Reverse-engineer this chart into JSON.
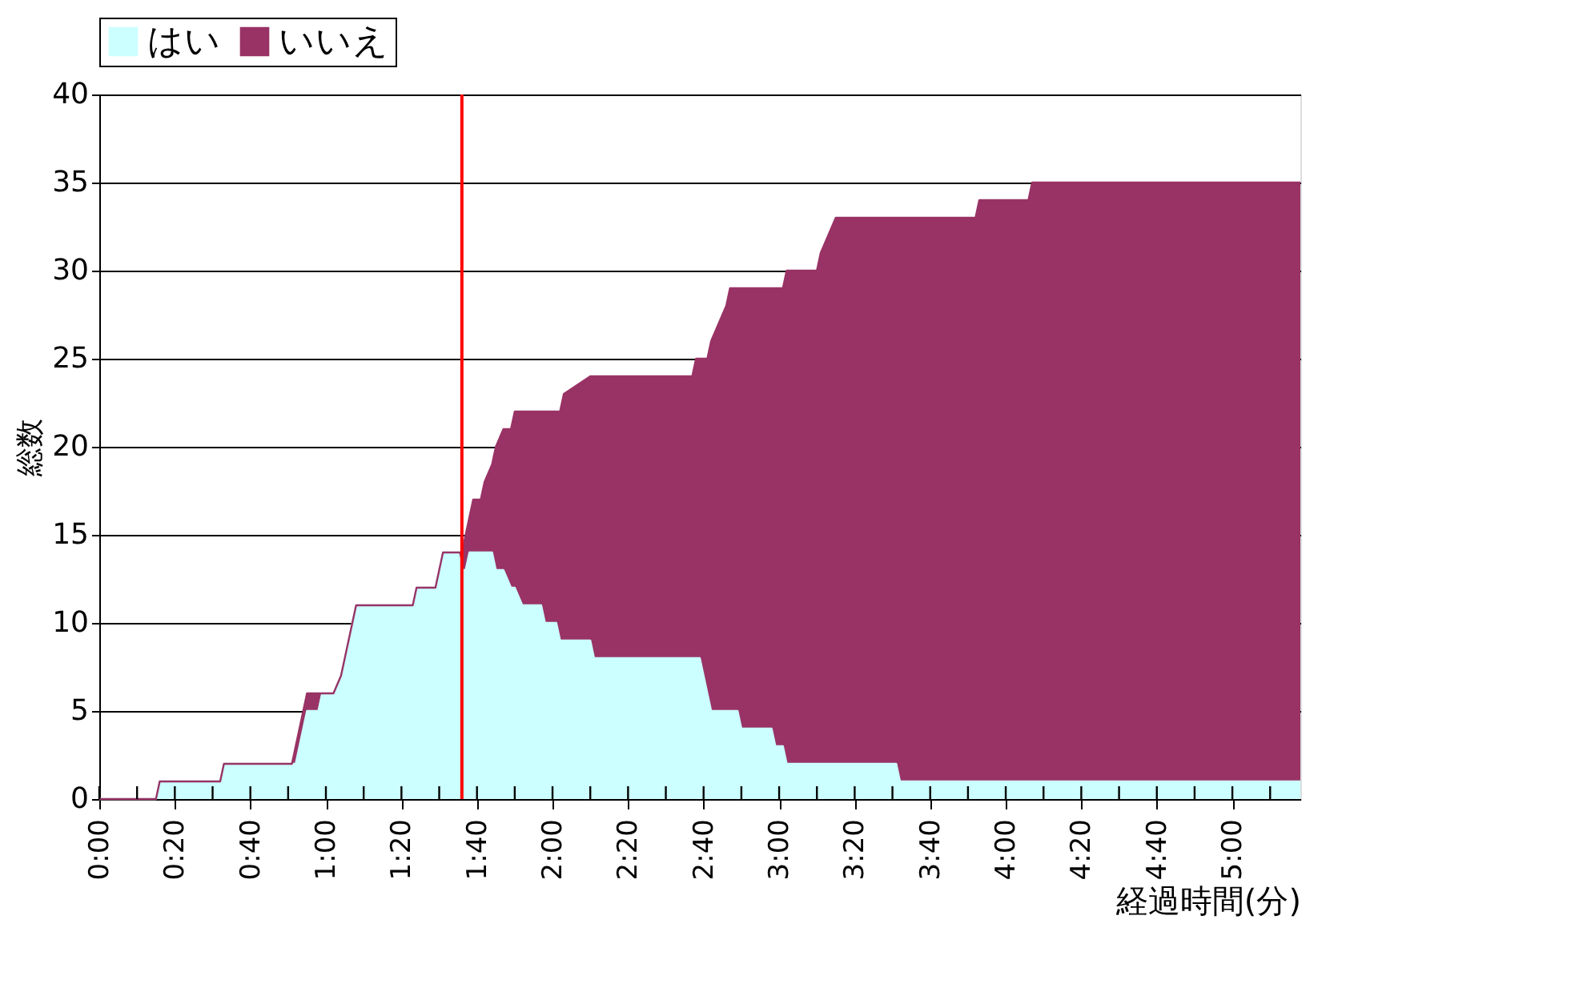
{
  "chart_data": {
    "type": "area",
    "stacked": true,
    "xlabel": "経過時間(分)",
    "ylabel": "総数",
    "x": [
      0,
      15,
      16,
      32,
      33,
      51,
      52,
      53,
      54,
      55,
      58,
      59,
      62,
      64,
      65,
      66,
      67,
      68,
      83,
      84,
      89,
      90,
      91,
      95,
      96,
      97,
      98,
      99,
      101,
      102,
      104,
      105,
      107,
      109,
      110,
      112,
      117,
      118,
      121,
      122,
      123,
      130,
      131,
      157,
      158,
      159,
      160,
      161,
      162,
      164,
      166,
      167,
      169,
      170,
      178,
      179,
      181,
      182,
      190,
      191,
      193,
      195,
      211,
      212,
      232,
      233,
      246,
      247,
      318
    ],
    "series": [
      {
        "name": "はい",
        "color": "#ccffff",
        "values": [
          0,
          0,
          1,
          1,
          2,
          2,
          2,
          3,
          4,
          5,
          5,
          6,
          6,
          7,
          8,
          9,
          10,
          11,
          11,
          12,
          12,
          13,
          14,
          14,
          13,
          13,
          14,
          14,
          14,
          14,
          14,
          13,
          13,
          12,
          12,
          11,
          11,
          10,
          10,
          9,
          9,
          9,
          8,
          8,
          8,
          8,
          7,
          6,
          5,
          5,
          5,
          5,
          5,
          4,
          4,
          3,
          3,
          2,
          2,
          2,
          2,
          2,
          2,
          1,
          1,
          1,
          1,
          1,
          1
        ]
      },
      {
        "name": "いいえ",
        "color": "#993366",
        "values": [
          0,
          0,
          0,
          0,
          0,
          0,
          1,
          1,
          1,
          1,
          1,
          0,
          0,
          0,
          0,
          0,
          0,
          0,
          0,
          0,
          0,
          0,
          0,
          0,
          1,
          2,
          2,
          3,
          3,
          4,
          5,
          7,
          8,
          9,
          10,
          11,
          11,
          12,
          12,
          13,
          14,
          15,
          16,
          16,
          17,
          17,
          18,
          19,
          21,
          22,
          23,
          24,
          24,
          25,
          25,
          26,
          26,
          28,
          28,
          29,
          30,
          31,
          31,
          32,
          32,
          33,
          33,
          34,
          34
        ]
      }
    ],
    "xlim": [
      0,
      318
    ],
    "xticks": [
      {
        "value": 0,
        "label": "0:00"
      },
      {
        "value": 10,
        "label": null
      },
      {
        "value": 20,
        "label": "0:20"
      },
      {
        "value": 30,
        "label": null
      },
      {
        "value": 40,
        "label": "0:40"
      },
      {
        "value": 50,
        "label": null
      },
      {
        "value": 60,
        "label": "1:00"
      },
      {
        "value": 70,
        "label": null
      },
      {
        "value": 80,
        "label": "1:20"
      },
      {
        "value": 90,
        "label": null
      },
      {
        "value": 100,
        "label": "1:40"
      },
      {
        "value": 110,
        "label": null
      },
      {
        "value": 120,
        "label": "2:00"
      },
      {
        "value": 130,
        "label": null
      },
      {
        "value": 140,
        "label": "2:20"
      },
      {
        "value": 150,
        "label": null
      },
      {
        "value": 160,
        "label": "2:40"
      },
      {
        "value": 170,
        "label": null
      },
      {
        "value": 180,
        "label": "3:00"
      },
      {
        "value": 190,
        "label": null
      },
      {
        "value": 200,
        "label": "3:20"
      },
      {
        "value": 210,
        "label": null
      },
      {
        "value": 220,
        "label": "3:40"
      },
      {
        "value": 230,
        "label": null
      },
      {
        "value": 240,
        "label": "4:00"
      },
      {
        "value": 250,
        "label": null
      },
      {
        "value": 260,
        "label": "4:20"
      },
      {
        "value": 270,
        "label": null
      },
      {
        "value": 280,
        "label": "4:40"
      },
      {
        "value": 290,
        "label": null
      },
      {
        "value": 300,
        "label": "5:00"
      },
      {
        "value": 310,
        "label": null
      }
    ],
    "ylim": [
      0,
      40
    ],
    "yticks": [
      0,
      5,
      10,
      15,
      20,
      25,
      30,
      35,
      40
    ],
    "grid": "y",
    "legend": "top",
    "ref_lines": [
      {
        "axis": "x",
        "value": 96,
        "color": "#ff0000"
      }
    ]
  }
}
